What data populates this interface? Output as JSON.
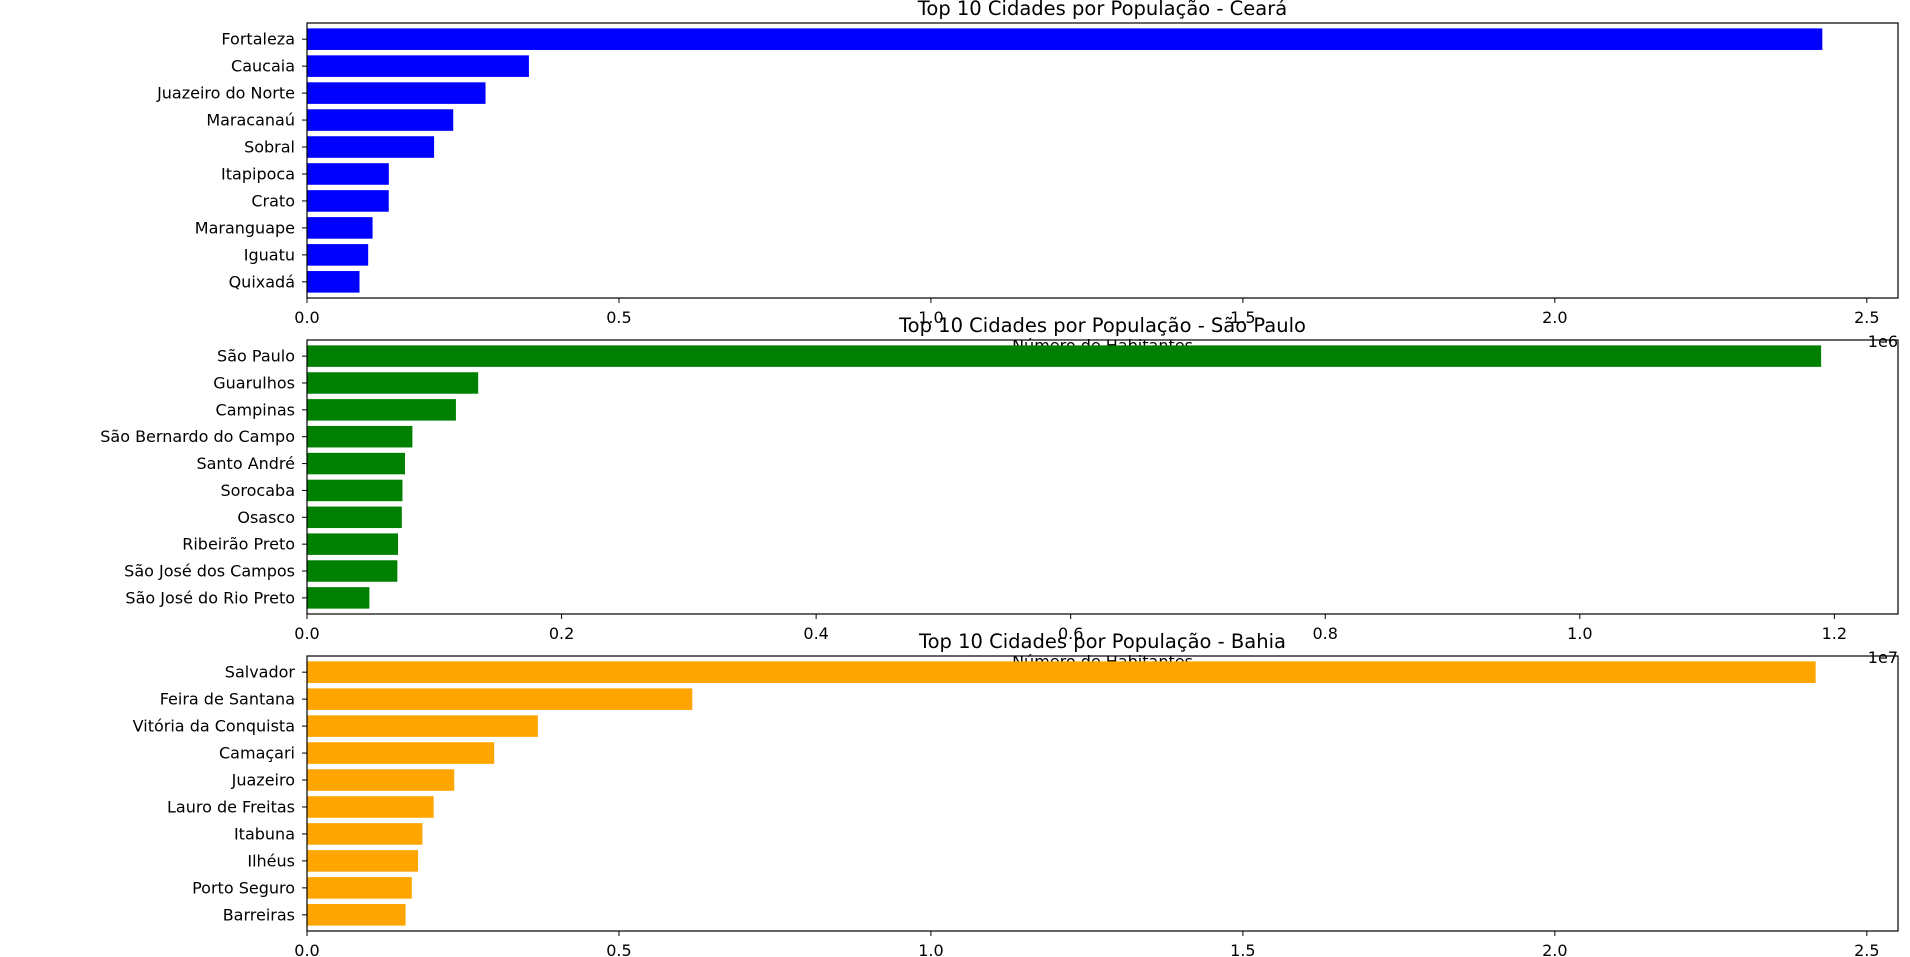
{
  "chart_data": [
    {
      "type": "bar",
      "orientation": "horizontal",
      "title": "Top 10 Cidades por População - Ceará",
      "xlabel": "Número de Habitantes",
      "ylabel": "",
      "offset_text": "1e6",
      "scale": 1000000,
      "xlim": [
        0,
        2.55
      ],
      "xticks": [
        "0.0",
        "0.5",
        "1.0",
        "1.5",
        "2.0",
        "2.5"
      ],
      "xtick_values": [
        0,
        0.5,
        1.0,
        1.5,
        2.0,
        2.5
      ],
      "color": "#0000ff",
      "grid": false,
      "categories": [
        "Fortaleza",
        "Caucaia",
        "Juazeiro do Norte",
        "Maracanaú",
        "Sobral",
        "Itapipoca",
        "Crato",
        "Maranguape",
        "Iguatu",
        "Quixadá"
      ],
      "values": [
        2428708,
        355679,
        286120,
        234392,
        203682,
        131123,
        131050,
        105093,
        98064,
        84168
      ]
    },
    {
      "type": "bar",
      "orientation": "horizontal",
      "title": "Top 10 Cidades por População - São Paulo",
      "xlabel": "Número de Habitantes",
      "ylabel": "",
      "offset_text": "1e7",
      "scale": 10000000,
      "xlim": [
        0,
        1.25
      ],
      "xticks": [
        "0.0",
        "0.2",
        "0.4",
        "0.6",
        "0.8",
        "1.0",
        "1.2"
      ],
      "xtick_values": [
        0,
        0.2,
        0.4,
        0.6,
        0.8,
        1.0,
        1.2
      ],
      "color": "#008000",
      "grid": false,
      "categories": [
        "São Paulo",
        "Guarulhos",
        "Campinas",
        "São Bernardo do Campo",
        "Santo André",
        "Sorocaba",
        "Osasco",
        "Ribeirão Preto",
        "São José dos Campos",
        "São José do Rio Preto"
      ],
      "values": [
        11895893,
        1345000,
        1170000,
        828000,
        770000,
        750000,
        745000,
        715000,
        710000,
        490000
      ]
    },
    {
      "type": "bar",
      "orientation": "horizontal",
      "title": "Top 10 Cidades por População - Bahia",
      "xlabel": "",
      "ylabel": "",
      "offset_text": "",
      "scale": 1000000,
      "xlim": [
        0,
        2.55
      ],
      "xticks": [
        "0.0",
        "0.5",
        "1.0",
        "1.5",
        "2.0",
        "2.5"
      ],
      "xtick_values": [
        0,
        0.5,
        1.0,
        1.5,
        2.0,
        2.5
      ],
      "color": "#ffa500",
      "grid": false,
      "categories": [
        "Salvador",
        "Feira de Santana",
        "Vitória da Conquista",
        "Camaçari",
        "Juazeiro",
        "Lauro de Freitas",
        "Itabuna",
        "Ilhéus",
        "Porto Seguro",
        "Barreiras"
      ],
      "values": [
        2418005,
        617528,
        370000,
        300000,
        236000,
        203000,
        185000,
        178000,
        168000,
        158000
      ]
    }
  ]
}
